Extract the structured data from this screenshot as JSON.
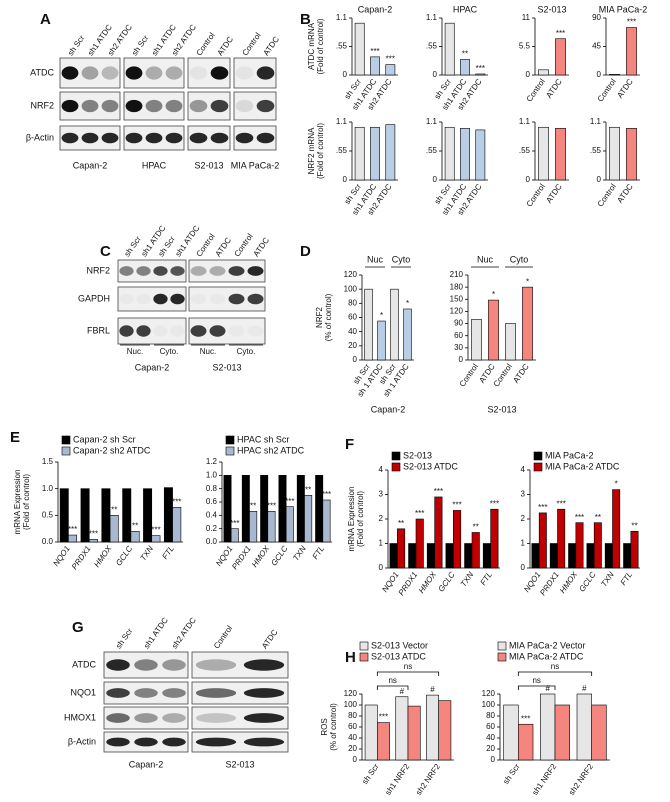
{
  "letters": [
    "A",
    "B",
    "C",
    "D",
    "E",
    "F",
    "G",
    "H"
  ],
  "blots": [
    {
      "rows": [
        "ATDC",
        "NRF2",
        "β-Actin"
      ],
      "groups": [
        {
          "name": "Capan-2",
          "lanes": [
            "sh Scr",
            "sh1 ATDC",
            "sh2 ATDC"
          ]
        },
        {
          "name": "HPAC",
          "lanes": [
            "sh Scr",
            "sh1 ATDC",
            "sh2 ATDC"
          ]
        },
        {
          "name": "S2-013",
          "lanes": [
            "Control",
            "ATDC"
          ]
        },
        {
          "name": "MIA PaCa-2",
          "lanes": [
            "Control",
            "ATDC"
          ]
        }
      ]
    },
    {
      "rows": [
        "NRF2",
        "GAPDH",
        "FBRL"
      ],
      "groups": [
        {
          "name": "Capan-2",
          "fractions": [
            {
              "name": "Nuc.",
              "lanes": [
                "sh Scr",
                "sh1 ATDC"
              ]
            },
            {
              "name": "Cyto.",
              "lanes": [
                "sh Scr",
                "sh1 ATDC"
              ]
            }
          ]
        },
        {
          "name": "S2-013",
          "fractions": [
            {
              "name": "Nuc.",
              "lanes": [
                "Control",
                "ATDC"
              ]
            },
            {
              "name": "Cyto.",
              "lanes": [
                "Control",
                "ATDC"
              ]
            }
          ]
        }
      ]
    },
    {
      "rows": [
        "ATDC",
        "NQO1",
        "HMOX1",
        "β-Actin"
      ],
      "groups": [
        {
          "name": "Capan-2",
          "lanes": [
            "sh Scr",
            "sh1 ATDC",
            "sh2 ATDC"
          ]
        },
        {
          "name": "S2-013",
          "lanes": [
            "Control",
            "ATDC"
          ]
        }
      ]
    }
  ],
  "chart_data": [
    {
      "type": "bar",
      "title": "Capan-2",
      "ylabel": [
        "ATDC mRNA",
        "(Fold of control)"
      ],
      "categories": [
        "sh Scr",
        "sh1 ATDC",
        "sh2 ATDC"
      ],
      "values": [
        1.0,
        0.35,
        0.2
      ],
      "colors": [
        "#e6e6e6",
        "#b9cde5",
        "#b9cde5"
      ],
      "annotations": [
        null,
        "***",
        "***"
      ],
      "ylim": [
        0,
        1.1
      ],
      "yticks": [
        0,
        {
          "value": 0.55,
          "label": ".55"
        },
        1.1
      ]
    },
    {
      "type": "bar",
      "title": "HPAC",
      "categories": [
        "sh Scr",
        "sh1 ATDC",
        "sh2 ATDC"
      ],
      "values": [
        1.0,
        0.3,
        0.02
      ],
      "colors": [
        "#e6e6e6",
        "#b9cde5",
        "#b9cde5"
      ],
      "annotations": [
        null,
        "**",
        "***"
      ],
      "ylim": [
        0,
        1.1
      ],
      "yticks": [
        0,
        {
          "value": 0.55,
          "label": ".55"
        },
        1.1
      ]
    },
    {
      "type": "bar",
      "title": "S2-013",
      "categories": [
        "Control",
        "ATDC"
      ],
      "values": [
        1,
        7
      ],
      "colors": [
        "#e6e6e6",
        "#f4867f"
      ],
      "annotations": [
        null,
        "***"
      ],
      "ylim": [
        0,
        11
      ],
      "yticks": [
        0,
        5.5,
        11
      ]
    },
    {
      "type": "bar",
      "title": "MIA PaCa-2",
      "categories": [
        "Control",
        "ATDC"
      ],
      "values": [
        1,
        75
      ],
      "colors": [
        "#e6e6e6",
        "#f4867f"
      ],
      "annotations": [
        null,
        "***"
      ],
      "ylim": [
        0,
        90
      ],
      "yticks": [
        0,
        45,
        90
      ]
    },
    {
      "type": "bar",
      "ylabel": [
        "NRF2 mRNA",
        "(Fold of control)"
      ],
      "categories": [
        "sh Scr",
        "sh1 ATDC",
        "sh2 ATDC"
      ],
      "values": [
        1.0,
        1.0,
        1.05
      ],
      "colors": [
        "#e6e6e6",
        "#b9cde5",
        "#b9cde5"
      ],
      "ylim": [
        0,
        1.1
      ],
      "yticks": [
        0,
        {
          "value": 0.55,
          "label": ".55"
        },
        1.1
      ]
    },
    {
      "type": "bar",
      "categories": [
        "sh Scr",
        "sh1 ATDC",
        "sh2 ATDC"
      ],
      "values": [
        1.0,
        0.98,
        0.95
      ],
      "colors": [
        "#e6e6e6",
        "#b9cde5",
        "#b9cde5"
      ],
      "ylim": [
        0,
        1.1
      ],
      "yticks": [
        0,
        {
          "value": 0.55,
          "label": ".55"
        },
        1.1
      ]
    },
    {
      "type": "bar",
      "categories": [
        "Control",
        "ATDC"
      ],
      "values": [
        1.0,
        0.98
      ],
      "colors": [
        "#e6e6e6",
        "#f4867f"
      ],
      "ylim": [
        0,
        1.1
      ],
      "yticks": [
        0,
        {
          "value": 0.55,
          "label": ".55"
        },
        1.1
      ]
    },
    {
      "type": "bar",
      "categories": [
        "Control",
        "ATDC"
      ],
      "values": [
        1.0,
        0.98
      ],
      "colors": [
        "#e6e6e6",
        "#f4867f"
      ],
      "ylim": [
        0,
        1.1
      ],
      "yticks": [
        0,
        {
          "value": 0.55,
          "label": ".55"
        },
        1.1
      ]
    },
    {
      "type": "bar",
      "title": "Capan-2",
      "ylabel": [
        "NRF2",
        "(% of control)"
      ],
      "groups": [
        "Nuc",
        "Cyto"
      ],
      "categories": [
        "sh Scr",
        "sh 1 ATDC",
        "sh Scr",
        "sh 1 ATDC"
      ],
      "values": [
        100,
        55,
        100,
        72
      ],
      "colors": [
        "#e6e6e6",
        "#b9cde5",
        "#e6e6e6",
        "#b9cde5"
      ],
      "annotations": [
        null,
        "*",
        null,
        "*"
      ],
      "ylim": [
        0,
        120
      ],
      "yticks": [
        0,
        20,
        40,
        60,
        80,
        100,
        120
      ]
    },
    {
      "type": "bar",
      "title": "S2-013",
      "groups": [
        "Nuc",
        "Cyto"
      ],
      "categories": [
        "Control",
        "ATDC",
        "Control",
        "ATDC"
      ],
      "values": [
        100,
        148,
        90,
        180
      ],
      "colors": [
        "#e6e6e6",
        "#f4867f",
        "#e6e6e6",
        "#f4867f"
      ],
      "annotations": [
        null,
        "*",
        null,
        "*"
      ],
      "ylim": [
        0,
        210
      ],
      "yticks": [
        0,
        30,
        60,
        90,
        120,
        150,
        180,
        210
      ]
    },
    {
      "type": "bar",
      "ylabel": [
        "mRNA Expression",
        "(Fold of control)"
      ],
      "categories": [
        "NQO1",
        "PRDX1",
        "HMOX",
        "GCLC",
        "TXN",
        "FTL"
      ],
      "series": [
        {
          "name": "Capan-2 sh Scr",
          "color": "#000000",
          "values": [
            1.0,
            1.0,
            1.0,
            1.0,
            1.0,
            1.02
          ]
        },
        {
          "name": "Capan-2 sh2 ATDC",
          "color": "#a8b8d0",
          "values": [
            0.13,
            0.05,
            0.5,
            0.2,
            0.12,
            0.65
          ],
          "annotations": [
            "***",
            "***",
            "**",
            "**",
            "***",
            "***"
          ]
        }
      ],
      "ylim": [
        0,
        1.5
      ],
      "yticks": [
        {
          "value": 0,
          "label": "0.0"
        },
        0.5,
        {
          "value": 1,
          "label": "1.0"
        },
        1.5
      ]
    },
    {
      "type": "bar",
      "categories": [
        "NQO1",
        "PRDX1",
        "HMOX",
        "GCLC",
        "TXN",
        "FTL"
      ],
      "series": [
        {
          "name": "HPAC sh Scr",
          "color": "#000000",
          "values": [
            1.0,
            1.0,
            1.0,
            1.0,
            1.0,
            1.0
          ]
        },
        {
          "name": "HPAC sh2 ATDC",
          "color": "#a8b8d0",
          "values": [
            0.2,
            0.46,
            0.46,
            0.53,
            0.7,
            0.63
          ],
          "annotations": [
            "***",
            "**",
            "***",
            "***",
            "**",
            "***"
          ]
        }
      ],
      "ylim": [
        0,
        1.2
      ],
      "yticks": [
        {
          "value": 0,
          "label": "0.0"
        },
        0.2,
        0.4,
        0.6,
        0.8,
        {
          "value": 1,
          "label": "1.0"
        },
        1.2
      ]
    },
    {
      "type": "bar",
      "ylabel": [
        "mRNA Expression",
        "(Fold of control)"
      ],
      "categories": [
        "NQO1",
        "PRDX1",
        "HMOX",
        "GCLC",
        "TXN",
        "FTL"
      ],
      "series": [
        {
          "name": "S2-013",
          "color": "#000000",
          "values": [
            1,
            1,
            1,
            1,
            1,
            1
          ]
        },
        {
          "name": "S2-013 ATDC",
          "color": "#c00000",
          "values": [
            1.6,
            2.0,
            2.9,
            2.35,
            1.45,
            2.4
          ],
          "annotations": [
            "**",
            "***",
            "***",
            "***",
            "**",
            "***"
          ]
        }
      ],
      "ylim": [
        0,
        4
      ],
      "yticks": [
        0,
        1,
        2,
        3,
        4
      ]
    },
    {
      "type": "bar",
      "categories": [
        "NQO1",
        "PRDX1",
        "HMOX",
        "GCLC",
        "TXN",
        "FTL"
      ],
      "series": [
        {
          "name": "MIA PaCa-2",
          "color": "#000000",
          "values": [
            1,
            1,
            1,
            1,
            1,
            1
          ]
        },
        {
          "name": "MIA PaCa-2 ATDC",
          "color": "#c00000",
          "values": [
            2.25,
            2.4,
            1.85,
            1.85,
            3.2,
            1.5
          ],
          "annotations": [
            "***",
            "***",
            "***",
            "**",
            "*",
            "**"
          ]
        }
      ],
      "ylim": [
        0,
        4
      ],
      "yticks": [
        0,
        1,
        2,
        3,
        4
      ]
    },
    {
      "type": "bar",
      "ylabel": [
        "ROS",
        "(% of control)"
      ],
      "categories": [
        "sh Scr",
        "sh1 NRF2",
        "sh2 NRF2"
      ],
      "brackets": [
        "ns",
        "ns"
      ],
      "series": [
        {
          "name": "S2-013 Vector",
          "color": "#e6e6e6",
          "values": [
            100,
            115,
            118
          ],
          "annotations": [
            null,
            "#",
            "#"
          ]
        },
        {
          "name": "S2-013 ATDC",
          "color": "#f4867f",
          "values": [
            68,
            98,
            108
          ],
          "annotations": [
            "***",
            null,
            null
          ]
        }
      ],
      "ylim": [
        0,
        120
      ],
      "yticks": [
        0,
        20,
        40,
        60,
        80,
        100,
        120
      ]
    },
    {
      "type": "bar",
      "categories": [
        "sh Scr",
        "sh1 NRF2",
        "sh2 NRF2"
      ],
      "brackets": [
        "ns",
        "ns"
      ],
      "series": [
        {
          "name": "MIA PaCa-2 Vector",
          "color": "#e6e6e6",
          "values": [
            100,
            120,
            120
          ],
          "annotations": [
            null,
            "#",
            "#"
          ]
        },
        {
          "name": "MIA PaCa-2 ATDC",
          "color": "#f4867f",
          "values": [
            65,
            100,
            100
          ],
          "annotations": [
            "***",
            null,
            null
          ]
        }
      ],
      "ylim": [
        0,
        120
      ],
      "yticks": [
        0,
        20,
        40,
        60,
        80,
        100,
        120
      ]
    }
  ]
}
